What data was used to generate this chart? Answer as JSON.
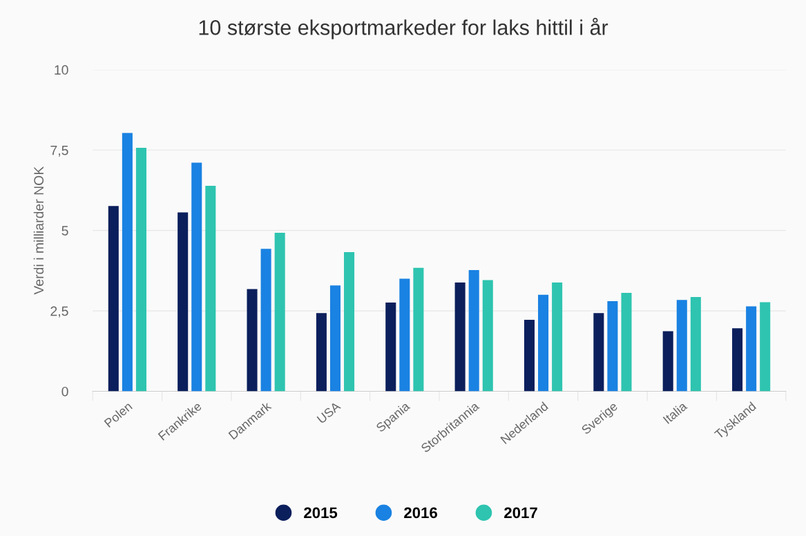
{
  "chart_data": {
    "type": "bar",
    "title": "10 største eksportmarkeder for laks hittil i år",
    "ylabel": "Verdi i milliarder NOK",
    "categories": [
      "Polen",
      "Frankrike",
      "Danmark",
      "USA",
      "Spania",
      "Storbritannia",
      "Nederland",
      "Sverige",
      "Italia",
      "Tyskland"
    ],
    "series": [
      {
        "name": "2015",
        "color": "#0b1f5c",
        "values": [
          5.76,
          5.56,
          3.18,
          2.43,
          2.76,
          3.38,
          2.22,
          2.43,
          1.87,
          1.96
        ]
      },
      {
        "name": "2016",
        "color": "#1a82e2",
        "values": [
          8.03,
          7.11,
          4.43,
          3.29,
          3.5,
          3.77,
          3.0,
          2.8,
          2.84,
          2.64
        ]
      },
      {
        "name": "2017",
        "color": "#2ec4b0",
        "values": [
          7.57,
          6.39,
          4.93,
          4.33,
          3.84,
          3.46,
          3.38,
          3.06,
          2.93,
          2.77
        ]
      }
    ],
    "ylim": [
      0,
      10
    ],
    "yticks": [
      0,
      {
        "value": 2.5,
        "label": "2,5"
      },
      5,
      {
        "value": 7.5,
        "label": "7,5"
      },
      10
    ],
    "grid": "y",
    "legend": "bottom"
  }
}
